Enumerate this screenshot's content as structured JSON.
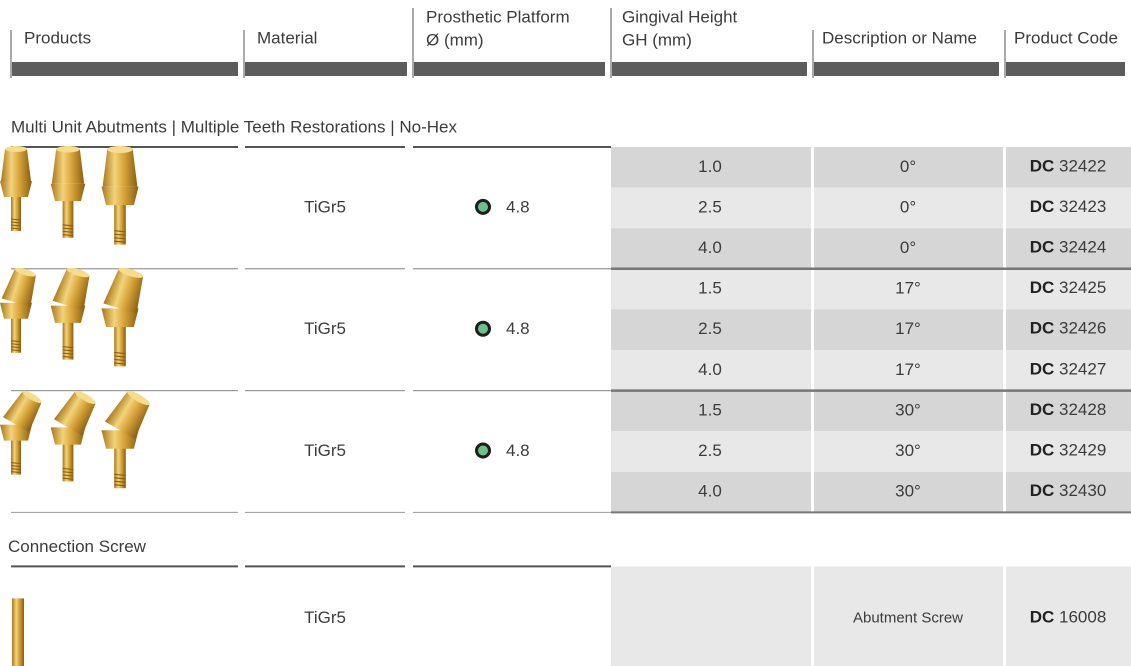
{
  "header": {
    "columns": [
      {
        "lines": [
          "Products"
        ]
      },
      {
        "lines": [
          "Material"
        ]
      },
      {
        "lines": [
          "Prosthetic Platform",
          "Ø (mm)"
        ]
      },
      {
        "lines": [
          "Gingival Height",
          "GH (mm)"
        ]
      },
      {
        "lines": [
          "Description or Name"
        ]
      },
      {
        "lines": [
          "Product Code"
        ]
      }
    ]
  },
  "sections": [
    {
      "title": "Multi Unit Abutments | Multiple Teeth Restorations | No-Hex",
      "groups": [
        {
          "material": "TiGr5",
          "platform": "4.8",
          "rows": [
            {
              "gh": "1.0",
              "description": "0°",
              "code_prefix": "DC",
              "code": "32422"
            },
            {
              "gh": "2.5",
              "description": "0°",
              "code_prefix": "DC",
              "code": "32423"
            },
            {
              "gh": "4.0",
              "description": "0°",
              "code_prefix": "DC",
              "code": "32424"
            }
          ]
        },
        {
          "material": "TiGr5",
          "platform": "4.8",
          "rows": [
            {
              "gh": "1.5",
              "description": "17°",
              "code_prefix": "DC",
              "code": "32425"
            },
            {
              "gh": "2.5",
              "description": "17°",
              "code_prefix": "DC",
              "code": "32426"
            },
            {
              "gh": "4.0",
              "description": "17°",
              "code_prefix": "DC",
              "code": "32427"
            }
          ]
        },
        {
          "material": "TiGr5",
          "platform": "4.8",
          "rows": [
            {
              "gh": "1.5",
              "description": "30°",
              "code_prefix": "DC",
              "code": "32428"
            },
            {
              "gh": "2.5",
              "description": "30°",
              "code_prefix": "DC",
              "code": "32429"
            },
            {
              "gh": "4.0",
              "description": "30°",
              "code_prefix": "DC",
              "code": "32430"
            }
          ]
        }
      ]
    },
    {
      "title": "Connection Screw",
      "groups": [
        {
          "material": "TiGr5",
          "rows": [
            {
              "description": "Abutment Screw",
              "code_prefix": "DC",
              "code": "16008"
            }
          ]
        }
      ]
    }
  ]
}
